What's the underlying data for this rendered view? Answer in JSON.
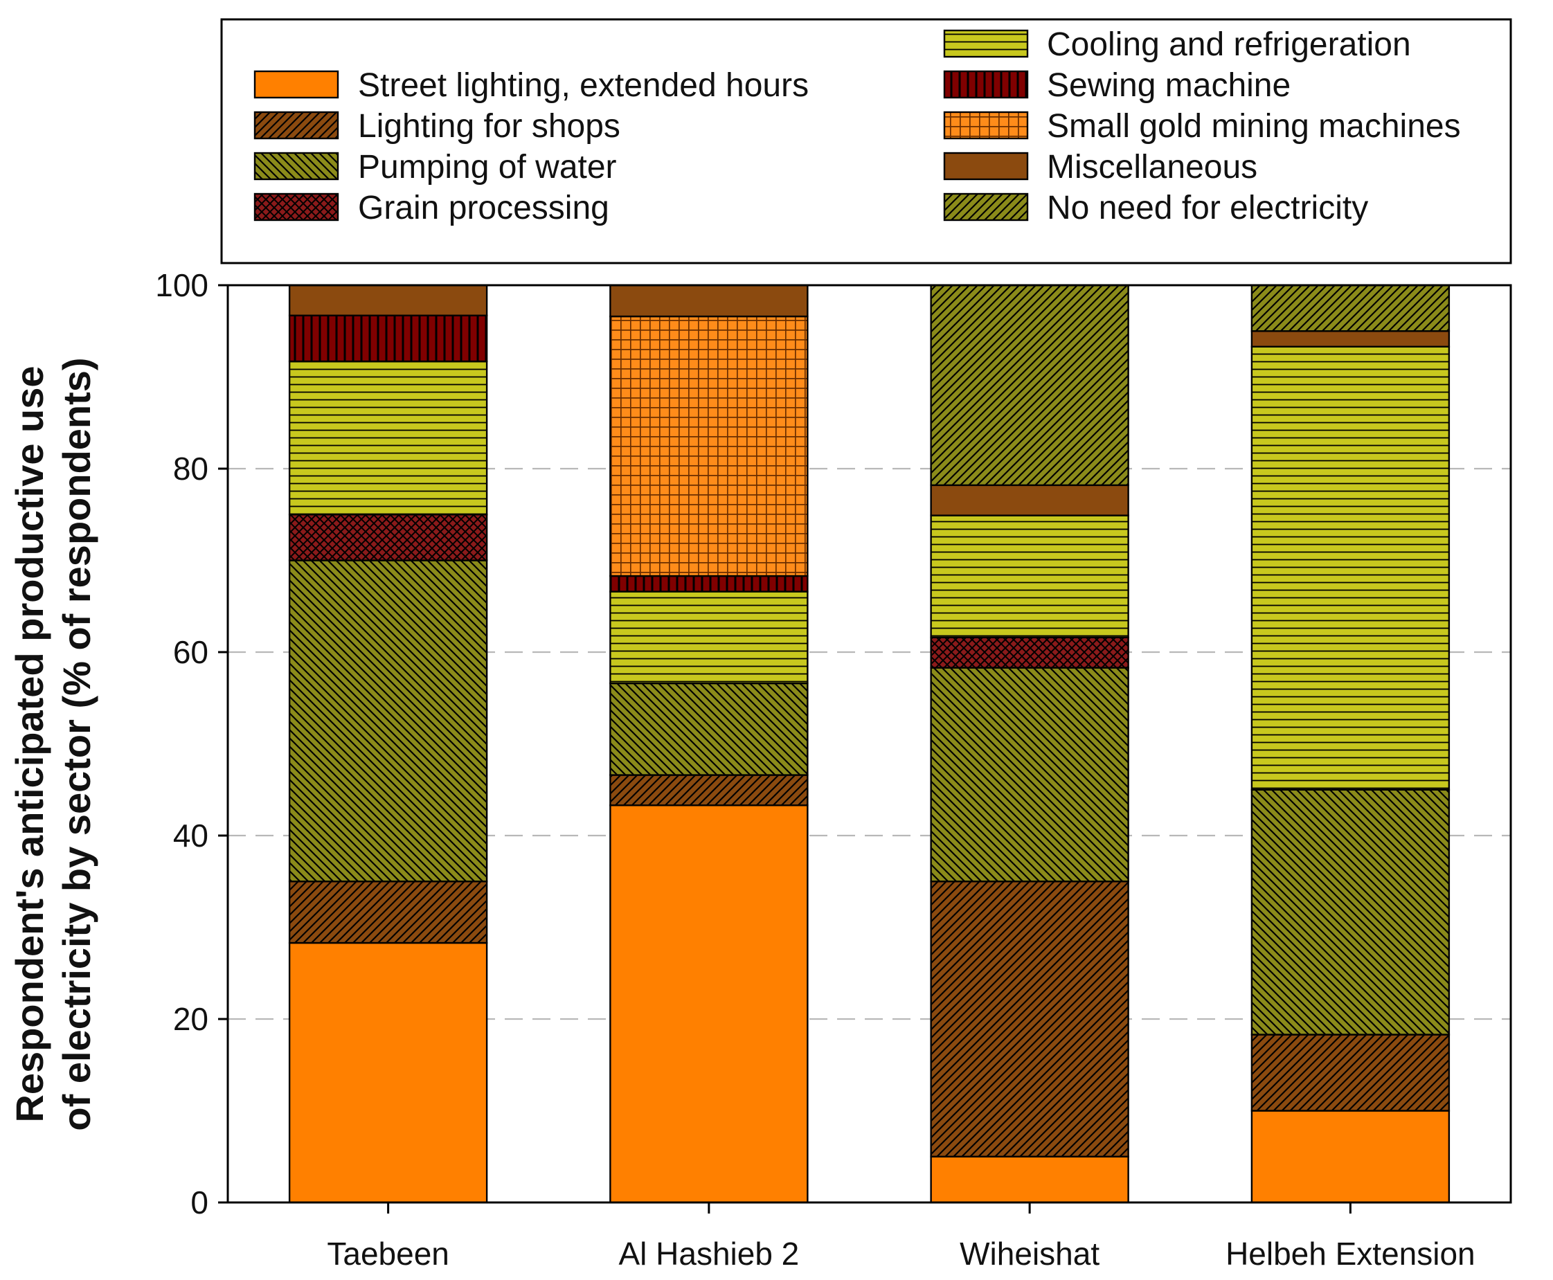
{
  "chart_data": {
    "type": "bar",
    "stacked": true,
    "title": "",
    "xlabel": "",
    "ylabel_lines": [
      "Respondent's anticipated productive use",
      "of electricity by sector (% of respondents)"
    ],
    "ylim": [
      0,
      100
    ],
    "yticks": [
      0,
      20,
      40,
      60,
      80,
      100
    ],
    "ytick_labels": [
      "0",
      "20",
      "40",
      "60",
      "80",
      "100"
    ],
    "grid": "horizontal dashed",
    "legend_position": "top",
    "categories": [
      "Taebeen",
      "Al Hashieb 2",
      "Wiheishat",
      "Helbeh Extension"
    ],
    "series": [
      {
        "name": "Street lighting, extended hours",
        "values": [
          28.3,
          43.3,
          5.0,
          10.0
        ],
        "color": "#FF8000",
        "pattern": "solid"
      },
      {
        "name": "Lighting for shops",
        "values": [
          6.7,
          3.3,
          30.0,
          8.3
        ],
        "color": "#8B4A0F",
        "pattern": "diagonal"
      },
      {
        "name": "Pumping of water",
        "values": [
          35.0,
          10.0,
          23.3,
          26.7
        ],
        "color": "#8B8B1A",
        "pattern": "backdiagonal"
      },
      {
        "name": "Grain processing",
        "values": [
          5.0,
          0.0,
          3.3,
          0.0
        ],
        "color": "#8B1A1A",
        "pattern": "crosshatch"
      },
      {
        "name": "Cooling and refrigeration",
        "values": [
          16.7,
          10.0,
          13.3,
          48.3
        ],
        "color": "#C8C81E",
        "pattern": "horizontal"
      },
      {
        "name": "Sewing machine",
        "values": [
          5.0,
          1.7,
          0.0,
          0.0
        ],
        "color": "#800000",
        "pattern": "vertical"
      },
      {
        "name": "Small gold mining machines",
        "values": [
          0.0,
          28.3,
          0.0,
          0.0
        ],
        "color": "#FF8C1A",
        "pattern": "grid"
      },
      {
        "name": "Miscellaneous",
        "values": [
          3.3,
          3.4,
          3.3,
          1.7
        ],
        "color": "#8B4A0F",
        "pattern": "solid"
      },
      {
        "name": "No need for electricity",
        "values": [
          0.0,
          0.0,
          21.8,
          5.0
        ],
        "color": "#8B8B1A",
        "pattern": "diagonal"
      }
    ]
  }
}
